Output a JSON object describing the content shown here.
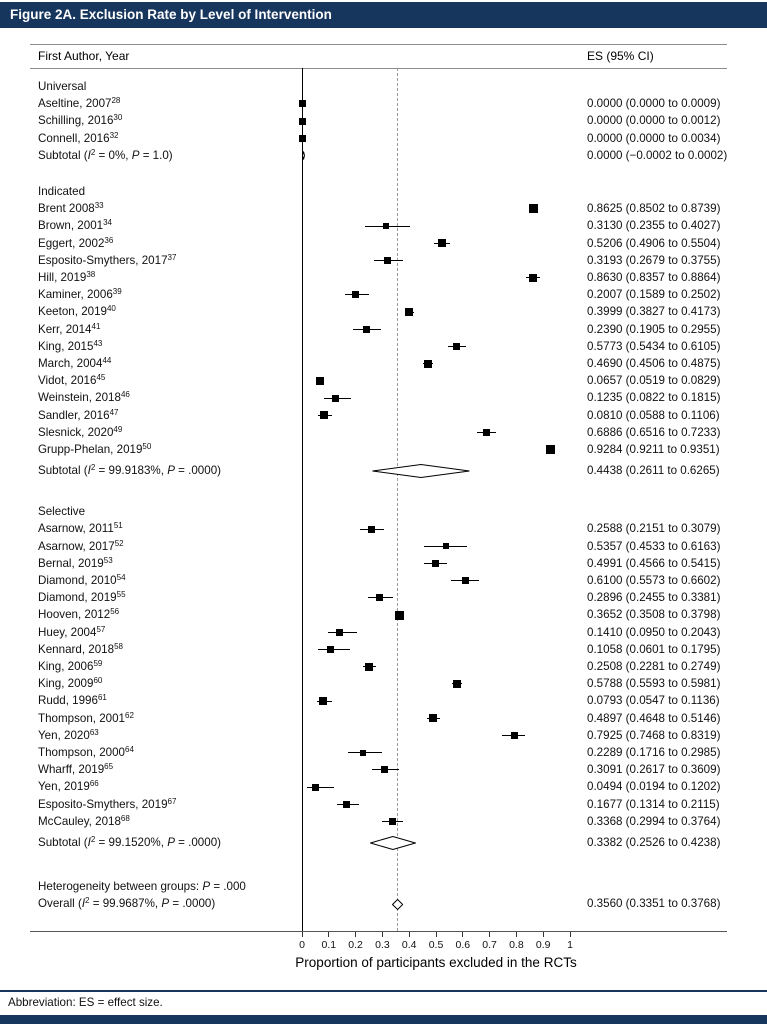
{
  "title": "Figure 2A. Exclusion Rate by Level of Intervention",
  "header": {
    "left_column": "First Author, Year",
    "right_column": "ES (95% CI)"
  },
  "footer": {
    "abbreviation": "Abbreviation: ES = effect size."
  },
  "accent_color": "#17365d",
  "chart_data": {
    "type": "forest",
    "title": "Figure 2A. Exclusion Rate by Level of Intervention",
    "xlabel": "Proportion of participants excluded in the RCTs",
    "xlim": [
      0,
      1
    ],
    "x_ticks": [
      "0",
      "0.1",
      "0.2",
      "0.3",
      "0.4",
      "0.5",
      "0.6",
      "0.7",
      "0.8",
      "0.9",
      "1"
    ],
    "zero_line": 0,
    "reference_line": 0.356,
    "groups": [
      {
        "name": "Universal",
        "studies": [
          {
            "label": "Aseltine, 2007",
            "sup": "28",
            "es": 0.0,
            "lo": 0.0,
            "hi": 0.0009,
            "es_text": "0.0000 (0.0000 to 0.0009)"
          },
          {
            "label": "Schilling, 2016",
            "sup": "30",
            "es": 0.0,
            "lo": 0.0,
            "hi": 0.0012,
            "es_text": "0.0000 (0.0000 to 0.0012)"
          },
          {
            "label": "Connell, 2016",
            "sup": "32",
            "es": 0.0,
            "lo": 0.0,
            "hi": 0.0034,
            "es_text": "0.0000 (0.0000 to 0.0034)"
          }
        ],
        "subtotal": {
          "i2": "0%",
          "p": "1.0",
          "es": 0.0,
          "lo": -0.0002,
          "hi": 0.0002,
          "es_text": "0.0000 (−0.0002 to 0.0002)"
        }
      },
      {
        "name": "Indicated",
        "studies": [
          {
            "label": "Brent 2008",
            "sup": "33",
            "es": 0.8625,
            "lo": 0.8502,
            "hi": 0.8739,
            "es_text": "0.8625 (0.8502 to 0.8739)"
          },
          {
            "label": "Brown, 2001",
            "sup": "34",
            "es": 0.313,
            "lo": 0.2355,
            "hi": 0.4027,
            "es_text": "0.3130 (0.2355 to 0.4027)"
          },
          {
            "label": "Eggert, 2002",
            "sup": "36",
            "es": 0.5206,
            "lo": 0.4906,
            "hi": 0.5504,
            "es_text": "0.5206 (0.4906 to 0.5504)"
          },
          {
            "label": "Esposito-Smythers, 2017",
            "sup": "37",
            "es": 0.3193,
            "lo": 0.2679,
            "hi": 0.3755,
            "es_text": "0.3193 (0.2679 to 0.3755)"
          },
          {
            "label": "Hill, 2019",
            "sup": "38",
            "es": 0.863,
            "lo": 0.8357,
            "hi": 0.8864,
            "es_text": "0.8630 (0.8357 to 0.8864)"
          },
          {
            "label": "Kaminer, 2006",
            "sup": "39",
            "es": 0.2007,
            "lo": 0.1589,
            "hi": 0.2502,
            "es_text": "0.2007 (0.1589 to 0.2502)"
          },
          {
            "label": "Keeton, 2019",
            "sup": "40",
            "es": 0.3999,
            "lo": 0.3827,
            "hi": 0.4173,
            "es_text": "0.3999 (0.3827 to 0.4173)"
          },
          {
            "label": "Kerr, 2014",
            "sup": "41",
            "es": 0.239,
            "lo": 0.1905,
            "hi": 0.2955,
            "es_text": "0.2390 (0.1905 to 0.2955)"
          },
          {
            "label": "King, 2015",
            "sup": "43",
            "es": 0.5773,
            "lo": 0.5434,
            "hi": 0.6105,
            "es_text": "0.5773 (0.5434 to 0.6105)"
          },
          {
            "label": "March, 2004",
            "sup": "44",
            "es": 0.469,
            "lo": 0.4506,
            "hi": 0.4875,
            "es_text": "0.4690 (0.4506 to 0.4875)"
          },
          {
            "label": "Vidot, 2016",
            "sup": "45",
            "es": 0.0657,
            "lo": 0.0519,
            "hi": 0.0829,
            "es_text": "0.0657 (0.0519 to 0.0829)"
          },
          {
            "label": "Weinstein, 2018",
            "sup": "46",
            "es": 0.1235,
            "lo": 0.0822,
            "hi": 0.1815,
            "es_text": "0.1235 (0.0822 to 0.1815)"
          },
          {
            "label": "Sandler, 2016",
            "sup": "47",
            "es": 0.081,
            "lo": 0.0588,
            "hi": 0.1106,
            "es_text": "0.0810 (0.0588 to 0.1106)"
          },
          {
            "label": "Slesnick, 2020",
            "sup": "49",
            "es": 0.6886,
            "lo": 0.6516,
            "hi": 0.7233,
            "es_text": "0.6886 (0.6516 to 0.7233)"
          },
          {
            "label": "Grupp-Phelan, 2019",
            "sup": "50",
            "es": 0.9284,
            "lo": 0.9211,
            "hi": 0.9351,
            "es_text": "0.9284 (0.9211 to 0.9351)"
          }
        ],
        "subtotal": {
          "i2": "99.9183%",
          "p": ".0000",
          "es": 0.4438,
          "lo": 0.2611,
          "hi": 0.6265,
          "es_text": "0.4438 (0.2611 to 0.6265)"
        }
      },
      {
        "name": "Selective",
        "studies": [
          {
            "label": "Asarnow, 2011",
            "sup": "51",
            "es": 0.2588,
            "lo": 0.2151,
            "hi": 0.3079,
            "es_text": "0.2588 (0.2151 to 0.3079)"
          },
          {
            "label": "Asarnow, 2017",
            "sup": "52",
            "es": 0.5357,
            "lo": 0.4533,
            "hi": 0.6163,
            "es_text": "0.5357 (0.4533 to 0.6163)"
          },
          {
            "label": "Bernal, 2019",
            "sup": "53",
            "es": 0.4991,
            "lo": 0.4566,
            "hi": 0.5415,
            "es_text": "0.4991 (0.4566 to 0.5415)"
          },
          {
            "label": "Diamond, 2010",
            "sup": "54",
            "es": 0.61,
            "lo": 0.5573,
            "hi": 0.6602,
            "es_text": "0.6100 (0.5573 to 0.6602)"
          },
          {
            "label": "Diamond, 2019",
            "sup": "55",
            "es": 0.2896,
            "lo": 0.2455,
            "hi": 0.3381,
            "es_text": "0.2896 (0.2455 to 0.3381)"
          },
          {
            "label": "Hooven, 2012",
            "sup": "56",
            "es": 0.3652,
            "lo": 0.3508,
            "hi": 0.3798,
            "es_text": "0.3652 (0.3508 to 0.3798)"
          },
          {
            "label": "Huey, 2004",
            "sup": "57",
            "es": 0.141,
            "lo": 0.095,
            "hi": 0.2043,
            "es_text": "0.1410 (0.0950 to 0.2043)"
          },
          {
            "label": "Kennard, 2018",
            "sup": "58",
            "es": 0.1058,
            "lo": 0.0601,
            "hi": 0.1795,
            "es_text": "0.1058 (0.0601 to 0.1795)"
          },
          {
            "label": "King, 2006",
            "sup": "59",
            "es": 0.2508,
            "lo": 0.2281,
            "hi": 0.2749,
            "es_text": "0.2508 (0.2281 to 0.2749)"
          },
          {
            "label": "King, 2009",
            "sup": "60",
            "es": 0.5788,
            "lo": 0.5593,
            "hi": 0.5981,
            "es_text": "0.5788 (0.5593 to 0.5981)"
          },
          {
            "label": "Rudd, 1996",
            "sup": "61",
            "es": 0.0793,
            "lo": 0.0547,
            "hi": 0.1136,
            "es_text": "0.0793 (0.0547 to 0.1136)"
          },
          {
            "label": "Thompson, 2001",
            "sup": "62",
            "es": 0.4897,
            "lo": 0.4648,
            "hi": 0.5146,
            "es_text": "0.4897 (0.4648 to 0.5146)"
          },
          {
            "label": "Yen, 2020",
            "sup": "63",
            "es": 0.7925,
            "lo": 0.7468,
            "hi": 0.8319,
            "es_text": "0.7925 (0.7468 to 0.8319)"
          },
          {
            "label": "Thompson, 2000",
            "sup": "64",
            "es": 0.2289,
            "lo": 0.1716,
            "hi": 0.2985,
            "es_text": "0.2289 (0.1716 to 0.2985)"
          },
          {
            "label": "Wharff, 2019",
            "sup": "65",
            "es": 0.3091,
            "lo": 0.2617,
            "hi": 0.3609,
            "es_text": "0.3091 (0.2617 to 0.3609)"
          },
          {
            "label": "Yen, 2019",
            "sup": "66",
            "es": 0.0494,
            "lo": 0.0194,
            "hi": 0.1202,
            "es_text": "0.0494 (0.0194 to 0.1202)"
          },
          {
            "label": "Esposito-Smythers, 2019",
            "sup": "67",
            "es": 0.1677,
            "lo": 0.1314,
            "hi": 0.2115,
            "es_text": "0.1677 (0.1314 to 0.2115)"
          },
          {
            "label": "McCauley, 2018",
            "sup": "68",
            "es": 0.3368,
            "lo": 0.2994,
            "hi": 0.3764,
            "es_text": "0.3368 (0.2994 to 0.3764)"
          }
        ],
        "subtotal": {
          "i2": "99.1520%",
          "p": ".0000",
          "es": 0.3382,
          "lo": 0.2526,
          "hi": 0.4238,
          "es_text": "0.3382 (0.2526 to 0.4238)"
        }
      }
    ],
    "heterogeneity": {
      "text": "Heterogeneity between groups:",
      "p": ".000"
    },
    "overall": {
      "name": "Overall",
      "i2": "99.9687%",
      "p": ".0000",
      "es": 0.356,
      "lo": 0.3351,
      "hi": 0.3768,
      "es_text": "0.3560 (0.3351 to 0.3768)"
    }
  }
}
